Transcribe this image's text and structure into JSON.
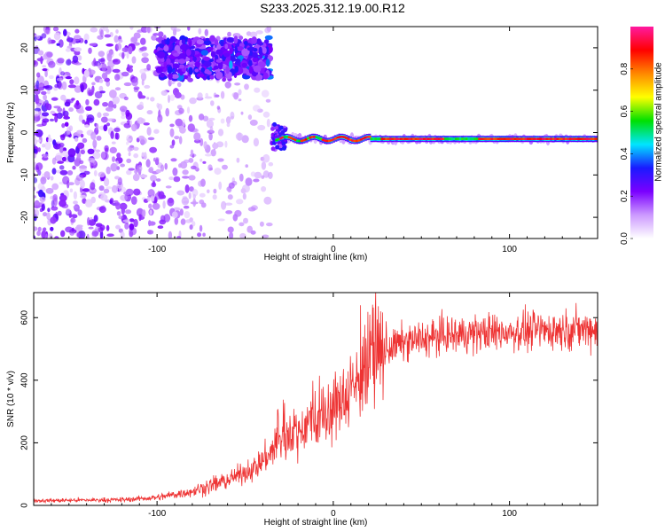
{
  "title": "S233.2025.312.19.00.R12",
  "chart_data": [
    {
      "type": "heatmap",
      "name": "spectrogram",
      "xlabel": "Height of straight line (km)",
      "ylabel": "Frequency (Hz)",
      "xlim": [
        -170,
        150
      ],
      "ylim": [
        -25,
        25
      ],
      "xticks": [
        -100,
        0,
        100
      ],
      "yticks": [
        20,
        10,
        0,
        -10,
        -20
      ],
      "colorbar": {
        "label": "Normalized spectral amplitude",
        "range": [
          0,
          1
        ],
        "ticks": [
          0.0,
          0.2,
          0.4,
          0.6,
          0.8
        ],
        "tick_labels": [
          "0.0",
          "0.2",
          "0.4",
          "0.6",
          "0.8"
        ],
        "stops": [
          "#ffffff",
          "#cc99ff",
          "#7a00ff",
          "#1a1aff",
          "#00e5ff",
          "#00e000",
          "#ffff00",
          "#ff8800",
          "#ff0000",
          "#ff1aa0"
        ]
      },
      "features": {
        "noise_region_x": [
          -170,
          -35
        ],
        "high_band_x": [
          -100,
          -35
        ],
        "high_band_freq_hz": [
          13,
          22
        ],
        "signal_start_x": -35,
        "signal_end_x": 150,
        "signal_freq_hz": -1.5,
        "signal_peak_amplitude": 0.95
      }
    },
    {
      "type": "line",
      "name": "snr",
      "xlabel": "Height of straight line (km)",
      "ylabel": "SNR (10 * v/v)",
      "xlim": [
        -170,
        150
      ],
      "ylim": [
        0,
        680
      ],
      "xticks": [
        -100,
        0,
        100
      ],
      "yticks": [
        0,
        200,
        400,
        600
      ],
      "color": "#ee3333",
      "envelope": {
        "x": [
          -170,
          -120,
          -100,
          -80,
          -60,
          -45,
          -35,
          -25,
          -15,
          -5,
          5,
          15,
          25,
          30,
          40,
          60,
          80,
          100,
          120,
          150
        ],
        "y": [
          15,
          18,
          25,
          45,
          80,
          120,
          170,
          230,
          260,
          280,
          330,
          410,
          480,
          500,
          520,
          540,
          550,
          555,
          560,
          565
        ]
      }
    }
  ]
}
